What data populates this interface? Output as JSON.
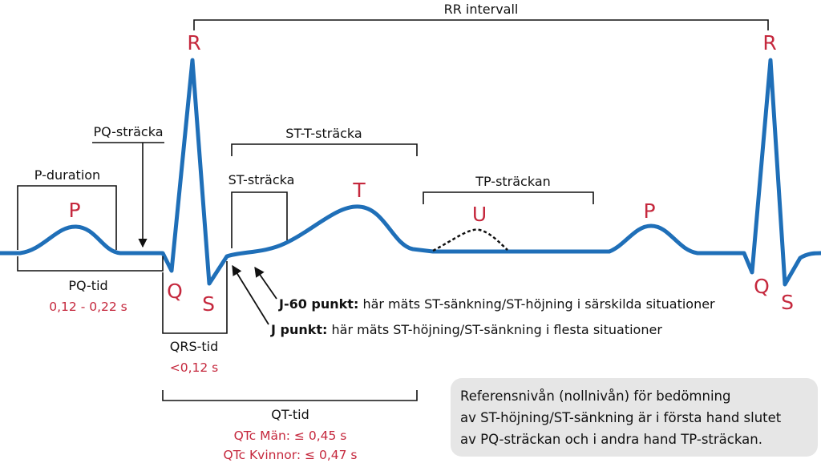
{
  "title": "RR intervall",
  "waves": {
    "r1": "R",
    "r2": "R",
    "q1": "Q",
    "q2": "Q",
    "s1": "S",
    "s2": "S",
    "p1": "P",
    "p2": "P",
    "t": "T",
    "u": "U"
  },
  "segments": {
    "pq_stracka": "PQ-sträcka",
    "p_duration": "P-duration",
    "st_t_stracka": "ST-T-sträcka",
    "st_stracka": "ST-sträcka",
    "tp_strackan": "TP-sträckan"
  },
  "intervals": {
    "pq_tid": {
      "label": "PQ-tid",
      "value": "0,12 - 0,22 s"
    },
    "qrs_tid": {
      "label": "QRS-tid",
      "value": "<0,12 s"
    },
    "qt_tid": {
      "label": "QT-tid",
      "men": "QTc Män: ≤ 0,45 s",
      "women": "QTc Kvinnor: ≤ 0,47 s"
    }
  },
  "points": [
    {
      "name": "J-60 punkt:",
      "text": " här mäts ST-sänkning/ST-höjning i särskilda situationer"
    },
    {
      "name": "J punkt:",
      "text": " här mäts ST-höjning/ST-sänkning i flesta situationer"
    }
  ],
  "note": [
    "Referensnivån (nollnivån) för bedömning",
    "av ST-höjning/ST-sänkning är i första hand slutet",
    "av PQ-sträckan och i andra hand TP-sträckan."
  ]
}
